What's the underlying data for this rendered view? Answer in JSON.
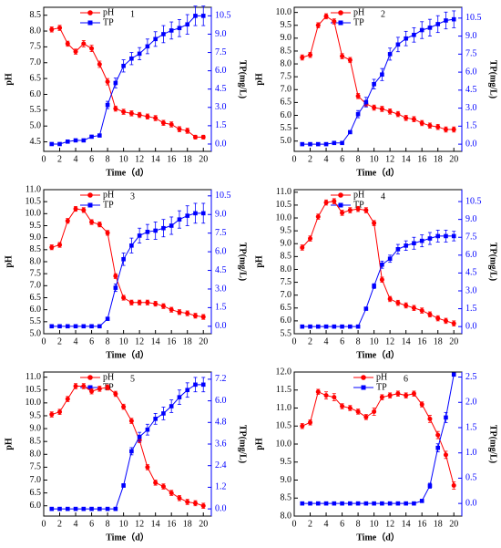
{
  "chart_data": [
    {
      "type": "line",
      "label": "1",
      "xlabel": "Time（d）",
      "ylabel": "pH",
      "y2label": "TP(mg/L)",
      "x": [
        1,
        2,
        3,
        4,
        5,
        6,
        7,
        8,
        9,
        10,
        11,
        12,
        13,
        14,
        15,
        16,
        17,
        18,
        19,
        20
      ],
      "xlim": [
        0,
        21
      ],
      "xticks": [
        0,
        2,
        4,
        6,
        8,
        10,
        12,
        14,
        16,
        18,
        20
      ],
      "ylim": [
        4.2,
        8.75
      ],
      "yticks": [
        4.5,
        {
          "value": 5,
          "label": "5.0"
        },
        5.5,
        {
          "value": 6,
          "label": "6.0"
        },
        6.5,
        {
          "value": 7,
          "label": "7.0"
        },
        7.5,
        {
          "value": 8,
          "label": "8.0"
        },
        8.5
      ],
      "y2lim": [
        -0.6,
        11.2
      ],
      "y2ticks": [
        {
          "value": 0,
          "label": "0.0"
        },
        1.5,
        {
          "value": 3,
          "label": "3.0"
        },
        4.5,
        {
          "value": 6,
          "label": "6.0"
        },
        7.5,
        {
          "value": 9,
          "label": "9.0"
        },
        10.5
      ],
      "series": [
        {
          "name": "pH",
          "color": "#ff0000",
          "marker": "circle",
          "values": [
            8.05,
            8.1,
            7.6,
            7.35,
            7.6,
            7.45,
            6.95,
            6.4,
            5.55,
            5.45,
            5.4,
            5.35,
            5.3,
            5.25,
            5.1,
            5.05,
            4.9,
            4.85,
            4.65,
            4.65
          ],
          "errors": [
            0.08,
            0.08,
            0.08,
            0.08,
            0.1,
            0.1,
            0.1,
            0.1,
            0.08,
            0.08,
            0.08,
            0.08,
            0.08,
            0.08,
            0.08,
            0.08,
            0.08,
            0.08,
            0.06,
            0.06
          ]
        },
        {
          "name": "TP",
          "color": "#0000ff",
          "marker": "square",
          "axis": "y2",
          "values": [
            0,
            0,
            0.2,
            0.3,
            0.3,
            0.6,
            0.7,
            3.2,
            5,
            6.4,
            7,
            7.4,
            8,
            8.6,
            9,
            9.3,
            9.5,
            9.8,
            10.5,
            10.5
          ],
          "errors": [
            0.05,
            0.05,
            0.05,
            0.05,
            0.05,
            0.1,
            0.1,
            0.3,
            0.4,
            0.5,
            0.5,
            0.5,
            0.6,
            0.6,
            0.7,
            0.7,
            0.7,
            0.8,
            0.8,
            0.8
          ]
        }
      ]
    },
    {
      "type": "line",
      "label": "2",
      "xlabel": "Time（d）",
      "ylabel": "pH",
      "y2label": "TP(mg/L)",
      "x": [
        1,
        2,
        3,
        4,
        5,
        6,
        7,
        8,
        9,
        10,
        11,
        12,
        13,
        14,
        15,
        16,
        17,
        18,
        19,
        20
      ],
      "xlim": [
        0,
        21
      ],
      "xticks": [
        0,
        2,
        4,
        6,
        8,
        10,
        12,
        14,
        16,
        18,
        20
      ],
      "ylim": [
        4.6,
        10.2
      ],
      "yticks": [
        {
          "value": 5,
          "label": "5.0"
        },
        5.5,
        {
          "value": 6,
          "label": "6.0"
        },
        6.5,
        {
          "value": 7,
          "label": "7.0"
        },
        7.5,
        {
          "value": 8,
          "label": "8.0"
        },
        8.5,
        {
          "value": 9,
          "label": "9.0"
        },
        9.5,
        {
          "value": 10,
          "label": "10.0"
        }
      ],
      "y2lim": [
        -0.6,
        11.4
      ],
      "y2ticks": [
        {
          "value": 0,
          "label": "0.0"
        },
        1.5,
        {
          "value": 3,
          "label": "3.0"
        },
        4.5,
        {
          "value": 6,
          "label": "6.0"
        },
        7.5,
        {
          "value": 9,
          "label": "9.0"
        },
        10.5
      ],
      "series": [
        {
          "name": "pH",
          "color": "#ff0000",
          "marker": "circle",
          "values": [
            8.25,
            8.35,
            9.5,
            9.85,
            9.65,
            8.3,
            8.15,
            6.75,
            6.45,
            6.3,
            6.25,
            6.15,
            6.05,
            5.9,
            5.85,
            5.7,
            5.6,
            5.55,
            5.45,
            5.45
          ],
          "errors": [
            0.1,
            0.1,
            0.1,
            0.1,
            0.1,
            0.1,
            0.1,
            0.1,
            0.1,
            0.1,
            0.1,
            0.1,
            0.1,
            0.1,
            0.1,
            0.1,
            0.1,
            0.1,
            0.1,
            0.1
          ]
        },
        {
          "name": "TP",
          "color": "#0000ff",
          "marker": "square",
          "axis": "y2",
          "values": [
            0,
            0,
            0,
            0,
            0.1,
            0.1,
            1,
            2.5,
            3.5,
            5,
            5.8,
            7.5,
            8.3,
            8.8,
            9.1,
            9.5,
            9.7,
            10,
            10.3,
            10.4
          ],
          "errors": [
            0.05,
            0.05,
            0.05,
            0.05,
            0.05,
            0.05,
            0.1,
            0.3,
            0.4,
            0.4,
            0.5,
            0.5,
            0.6,
            0.6,
            0.6,
            0.7,
            0.7,
            0.7,
            0.7,
            0.7
          ]
        }
      ]
    },
    {
      "type": "line",
      "label": "3",
      "xlabel": "Time（d）",
      "ylabel": "pH",
      "y2label": "TP(mg/L)",
      "x": [
        1,
        2,
        3,
        4,
        5,
        6,
        7,
        8,
        9,
        10,
        11,
        12,
        13,
        14,
        15,
        16,
        17,
        18,
        19,
        20
      ],
      "xlim": [
        0,
        21
      ],
      "xticks": [
        0,
        2,
        4,
        6,
        8,
        10,
        12,
        14,
        16,
        18,
        20
      ],
      "ylim": [
        5,
        11
      ],
      "yticks": [
        {
          "value": 5,
          "label": "5.0"
        },
        5.5,
        {
          "value": 6,
          "label": "6.0"
        },
        6.5,
        {
          "value": 7,
          "label": "7.0"
        },
        7.5,
        {
          "value": 8,
          "label": "8.0"
        },
        8.5,
        {
          "value": 9,
          "label": "9.0"
        },
        9.5,
        {
          "value": 10,
          "label": "10.0"
        },
        10.5,
        {
          "value": 11,
          "label": "11.0"
        }
      ],
      "y2lim": [
        -0.6,
        11
      ],
      "y2ticks": [
        {
          "value": 0,
          "label": "0.0"
        },
        1.5,
        {
          "value": 3,
          "label": "3.0"
        },
        4.5,
        {
          "value": 6,
          "label": "6.0"
        },
        7.5,
        {
          "value": 9,
          "label": "9.0"
        },
        10.5
      ],
      "series": [
        {
          "name": "pH",
          "color": "#ff0000",
          "marker": "circle",
          "values": [
            8.6,
            8.7,
            9.7,
            10.2,
            10.15,
            9.65,
            9.55,
            9.2,
            7.4,
            6.5,
            6.3,
            6.3,
            6.3,
            6.25,
            6.15,
            6,
            5.9,
            5.85,
            5.75,
            5.7
          ],
          "errors": [
            0.1,
            0.1,
            0.1,
            0.1,
            0.1,
            0.1,
            0.1,
            0.1,
            0.1,
            0.1,
            0.1,
            0.1,
            0.1,
            0.1,
            0.1,
            0.1,
            0.1,
            0.1,
            0.1,
            0.1
          ]
        },
        {
          "name": "TP",
          "color": "#0000ff",
          "marker": "square",
          "axis": "y2",
          "values": [
            0,
            0,
            0,
            0,
            0,
            0,
            0,
            0.6,
            3.1,
            5.4,
            6.5,
            7.3,
            7.6,
            7.7,
            7.9,
            8.1,
            8.6,
            8.9,
            9.1,
            9.1
          ],
          "errors": [
            0.05,
            0.05,
            0.05,
            0.05,
            0.05,
            0.05,
            0.05,
            0.1,
            0.3,
            0.5,
            0.6,
            0.6,
            0.6,
            0.7,
            0.7,
            0.7,
            0.7,
            0.8,
            0.8,
            0.8
          ]
        }
      ]
    },
    {
      "type": "line",
      "label": "4",
      "xlabel": "Time（d）",
      "ylabel": "pH",
      "y2label": "TP(mg/L)",
      "x": [
        1,
        2,
        3,
        4,
        5,
        6,
        7,
        8,
        9,
        10,
        11,
        12,
        13,
        14,
        15,
        16,
        17,
        18,
        19,
        20
      ],
      "xlim": [
        0,
        21
      ],
      "xticks": [
        0,
        2,
        4,
        6,
        8,
        10,
        12,
        14,
        16,
        18,
        20
      ],
      "ylim": [
        5.5,
        11.1
      ],
      "yticks": [
        5.5,
        {
          "value": 6,
          "label": "6.0"
        },
        6.5,
        {
          "value": 7,
          "label": "7.0"
        },
        7.5,
        {
          "value": 8,
          "label": "8.0"
        },
        8.5,
        {
          "value": 9,
          "label": "9.0"
        },
        9.5,
        {
          "value": 10,
          "label": "10.0"
        },
        10.5,
        {
          "value": 11,
          "label": "11.0"
        }
      ],
      "y2lim": [
        -0.6,
        11.5
      ],
      "y2ticks": [
        {
          "value": 0,
          "label": "0.0"
        },
        1.5,
        {
          "value": 3,
          "label": "3.0"
        },
        4.5,
        {
          "value": 6,
          "label": "6.0"
        },
        7.5,
        {
          "value": 9,
          "label": "9.0"
        },
        10.5
      ],
      "series": [
        {
          "name": "pH",
          "color": "#ff0000",
          "marker": "circle",
          "values": [
            8.85,
            9.2,
            10.05,
            10.6,
            10.65,
            10.2,
            10.3,
            10.35,
            10.3,
            9.8,
            7.6,
            6.85,
            6.7,
            6.6,
            6.5,
            6.4,
            6.25,
            6.1,
            6,
            5.9
          ],
          "errors": [
            0.1,
            0.1,
            0.1,
            0.1,
            0.1,
            0.1,
            0.1,
            0.1,
            0.1,
            0.1,
            0.1,
            0.1,
            0.1,
            0.1,
            0.1,
            0.1,
            0.1,
            0.1,
            0.1,
            0.1
          ]
        },
        {
          "name": "TP",
          "color": "#0000ff",
          "marker": "square",
          "axis": "y2",
          "values": [
            0,
            0,
            0,
            0,
            0,
            0,
            0,
            0,
            1.5,
            3.4,
            5.2,
            5.7,
            6.5,
            6.8,
            7,
            7.2,
            7.4,
            7.6,
            7.6,
            7.6
          ],
          "errors": [
            0.05,
            0.05,
            0.05,
            0.05,
            0.05,
            0.05,
            0.05,
            0.05,
            0.1,
            0.2,
            0.3,
            0.3,
            0.4,
            0.4,
            0.5,
            0.5,
            0.5,
            0.5,
            0.5,
            0.4
          ]
        }
      ]
    },
    {
      "type": "line",
      "label": "5",
      "xlabel": "Time（d）",
      "ylabel": "pH",
      "y2label": "TP(mg/L)",
      "x": [
        1,
        2,
        3,
        4,
        5,
        6,
        7,
        8,
        9,
        10,
        11,
        12,
        13,
        14,
        15,
        16,
        17,
        18,
        19,
        20
      ],
      "xlim": [
        0,
        21
      ],
      "xticks": [
        0,
        2,
        4,
        6,
        8,
        10,
        12,
        14,
        16,
        18,
        20
      ],
      "ylim": [
        5.6,
        11.2
      ],
      "yticks": [
        {
          "value": 6,
          "label": "6.0"
        },
        6.5,
        {
          "value": 7,
          "label": "7.0"
        },
        7.5,
        {
          "value": 8,
          "label": "8.0"
        },
        8.5,
        {
          "value": 9,
          "label": "9.0"
        },
        9.5,
        {
          "value": 10,
          "label": "10.0"
        },
        10.5,
        {
          "value": 11,
          "label": "11.0"
        }
      ],
      "y2lim": [
        -0.4,
        7.6
      ],
      "y2ticks": [
        {
          "value": 0,
          "label": "0.0"
        },
        1.2,
        2.4,
        3.6,
        4.8,
        {
          "value": 6,
          "label": "6.0"
        },
        7.2
      ],
      "series": [
        {
          "name": "pH",
          "color": "#ff0000",
          "marker": "circle",
          "values": [
            9.55,
            9.65,
            10.15,
            10.65,
            10.65,
            10.45,
            10.55,
            10.6,
            10.35,
            9.85,
            9.3,
            8.55,
            7.5,
            6.9,
            6.75,
            6.5,
            6.3,
            6.15,
            6.1,
            6
          ],
          "errors": [
            0.1,
            0.1,
            0.1,
            0.1,
            0.1,
            0.1,
            0.1,
            0.1,
            0.1,
            0.1,
            0.1,
            0.1,
            0.1,
            0.1,
            0.1,
            0.1,
            0.1,
            0.1,
            0.1,
            0.1
          ]
        },
        {
          "name": "TP",
          "color": "#0000ff",
          "marker": "square",
          "axis": "y2",
          "values": [
            0,
            0,
            0,
            0,
            0,
            0,
            0,
            0,
            0,
            1.3,
            3.2,
            4,
            4.4,
            5,
            5.3,
            5.7,
            6.2,
            6.6,
            6.9,
            6.9
          ],
          "errors": [
            0.03,
            0.03,
            0.03,
            0.03,
            0.03,
            0.03,
            0.03,
            0.03,
            0.03,
            0.1,
            0.2,
            0.25,
            0.3,
            0.3,
            0.35,
            0.35,
            0.4,
            0.4,
            0.4,
            0.4
          ]
        }
      ]
    },
    {
      "type": "line",
      "label": "6",
      "xlabel": "Time（d）",
      "ylabel": "pH",
      "y2label": "TP(mg/L)",
      "x": [
        1,
        2,
        3,
        4,
        5,
        6,
        7,
        8,
        9,
        10,
        11,
        12,
        13,
        14,
        15,
        16,
        17,
        18,
        19,
        20
      ],
      "xlim": [
        0,
        21
      ],
      "xticks": [
        0,
        2,
        4,
        6,
        8,
        10,
        12,
        14,
        16,
        18,
        20
      ],
      "ylim": [
        8,
        12
      ],
      "yticks": [
        {
          "value": 8,
          "label": "8.0"
        },
        8.5,
        {
          "value": 9,
          "label": "9.0"
        },
        9.5,
        {
          "value": 10,
          "label": "10.0"
        },
        10.5,
        {
          "value": 11,
          "label": "11.0"
        },
        11.5,
        {
          "value": 12,
          "label": "12.0"
        }
      ],
      "y2lim": [
        -0.25,
        2.6
      ],
      "y2ticks": [
        {
          "value": 0,
          "label": "0.0"
        },
        0.5,
        {
          "value": 1,
          "label": "1.0"
        },
        1.5,
        {
          "value": 2,
          "label": "2.0"
        },
        2.5
      ],
      "series": [
        {
          "name": "pH",
          "color": "#ff0000",
          "marker": "circle",
          "values": [
            10.5,
            10.6,
            11.45,
            11.35,
            11.3,
            11.05,
            11,
            10.9,
            10.75,
            10.9,
            11.3,
            11.35,
            11.4,
            11.35,
            11.4,
            11.1,
            10.7,
            10.25,
            9.7,
            8.85
          ],
          "errors": [
            0.07,
            0.07,
            0.07,
            0.1,
            0.1,
            0.07,
            0.07,
            0.07,
            0.07,
            0.1,
            0.07,
            0.07,
            0.07,
            0.07,
            0.07,
            0.07,
            0.1,
            0.1,
            0.1,
            0.1
          ]
        },
        {
          "name": "TP",
          "color": "#0000ff",
          "marker": "square",
          "axis": "y2",
          "values": [
            0,
            0,
            0,
            0,
            0,
            0,
            0,
            0,
            0,
            0,
            0,
            0,
            0,
            0,
            0,
            0.05,
            0.35,
            1.1,
            1.7,
            2.55
          ],
          "errors": [
            0.01,
            0.01,
            0.01,
            0.01,
            0.01,
            0.01,
            0.01,
            0.01,
            0.01,
            0.01,
            0.01,
            0.01,
            0.01,
            0.01,
            0.01,
            0.02,
            0.05,
            0.08,
            0.1,
            0.02
          ]
        }
      ]
    }
  ]
}
